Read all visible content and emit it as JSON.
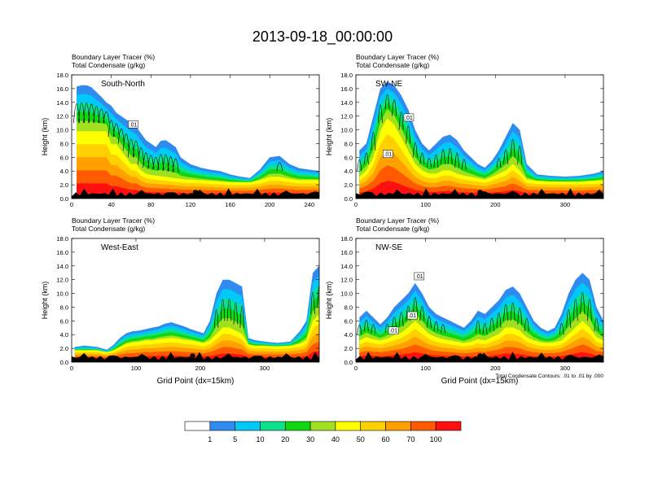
{
  "title": "2013-09-18_00:00:00",
  "chart_data": [
    {
      "type": "heatmap",
      "name": "South-North",
      "panel_label": "South-North",
      "subtitle_1": "Boundary Layer Tracer   (%)",
      "subtitle_2": "Total Condensate   (g/kg)",
      "ylabel": "Height (km)",
      "xlabel": "",
      "xlim": [
        0,
        250
      ],
      "ylim": [
        0,
        18
      ],
      "xticks": [
        "0",
        "40",
        "80",
        "120",
        "160",
        "200",
        "240"
      ],
      "yticks": [
        "0.0",
        "2.0",
        "4.0",
        "6.0",
        "8.0",
        "10.0",
        "12.0",
        "14.0",
        "16.0",
        "18.0"
      ],
      "marker_x": 125,
      "contour_labels": [
        {
          "text": ".01",
          "x": 58,
          "y": 10.5
        }
      ],
      "tracer_columns": [
        [
          5,
          16.3,
          10
        ],
        [
          10,
          16.5,
          10
        ],
        [
          15,
          16.5,
          10
        ],
        [
          20,
          16.2,
          10
        ],
        [
          25,
          15.5,
          10
        ],
        [
          30,
          14.8,
          10
        ],
        [
          35,
          14,
          10
        ],
        [
          40,
          13.5,
          8
        ],
        [
          45,
          12.5,
          8
        ],
        [
          50,
          12,
          7
        ],
        [
          55,
          11.5,
          6
        ],
        [
          60,
          11,
          5
        ],
        [
          65,
          10.5,
          5
        ],
        [
          70,
          9.5,
          4
        ],
        [
          75,
          8.5,
          3.5
        ],
        [
          80,
          8,
          3.3
        ],
        [
          85,
          7.5,
          3.2
        ],
        [
          90,
          8.4,
          3.1
        ],
        [
          95,
          8.5,
          3.0
        ],
        [
          100,
          8.0,
          2.9
        ],
        [
          105,
          7.5,
          2.8
        ],
        [
          110,
          6,
          2.7
        ],
        [
          115,
          5.5,
          2.6
        ],
        [
          120,
          5,
          2.6
        ],
        [
          130,
          4.5,
          2.5
        ],
        [
          140,
          4.2,
          2.4
        ],
        [
          150,
          4,
          2.3
        ],
        [
          160,
          3.5,
          2.2
        ],
        [
          170,
          3.2,
          2.2
        ],
        [
          180,
          3.0,
          2.2
        ],
        [
          190,
          4.2,
          2.5
        ],
        [
          200,
          6,
          3
        ],
        [
          210,
          6.2,
          3
        ],
        [
          220,
          5,
          2.7
        ],
        [
          230,
          4.4,
          2.5
        ],
        [
          240,
          4.2,
          2.5
        ],
        [
          250,
          4.0,
          2.5
        ]
      ]
    },
    {
      "type": "heatmap",
      "name": "SW-NE",
      "panel_label": "SW-NE",
      "subtitle_1": "Boundary Layer Tracer   (%)",
      "subtitle_2": "Total Condensate   (g/kg)",
      "ylabel": "Height (km)",
      "xlabel": "",
      "xlim": [
        0,
        355
      ],
      "ylim": [
        0,
        18
      ],
      "xticks": [
        "0",
        "100",
        "200",
        "300"
      ],
      "yticks": [
        "0.0",
        "2.0",
        "4.0",
        "6.0",
        "8.0",
        "10.0",
        "12.0",
        "14.0",
        "16.0",
        "18.0"
      ],
      "marker_x": 178,
      "contour_labels": [
        {
          "text": ".01",
          "x": 70,
          "y": 11.5
        },
        {
          "text": ".01",
          "x": 40,
          "y": 6.2
        }
      ],
      "tracer_columns": [
        [
          5,
          7,
          3
        ],
        [
          15,
          8,
          4
        ],
        [
          25,
          12,
          6
        ],
        [
          35,
          16,
          10
        ],
        [
          45,
          17,
          12
        ],
        [
          55,
          16.5,
          11
        ],
        [
          65,
          15,
          9
        ],
        [
          75,
          13,
          7
        ],
        [
          85,
          10,
          5
        ],
        [
          95,
          8,
          4
        ],
        [
          105,
          7,
          3.5
        ],
        [
          115,
          8,
          3.5
        ],
        [
          125,
          9,
          4
        ],
        [
          135,
          9.3,
          4
        ],
        [
          145,
          8.5,
          3.5
        ],
        [
          155,
          7,
          3.2
        ],
        [
          165,
          6,
          3
        ],
        [
          175,
          5,
          2.8
        ],
        [
          185,
          4.5,
          2.6
        ],
        [
          195,
          5.5,
          3
        ],
        [
          205,
          7,
          3.5
        ],
        [
          215,
          9,
          4
        ],
        [
          225,
          11,
          5
        ],
        [
          235,
          10,
          4
        ],
        [
          245,
          5,
          2.6
        ],
        [
          260,
          3.5,
          2.4
        ],
        [
          280,
          3.3,
          2.3
        ],
        [
          300,
          3.2,
          2.3
        ],
        [
          320,
          3.3,
          2.3
        ],
        [
          340,
          3.6,
          2.4
        ],
        [
          355,
          4,
          2.5
        ]
      ]
    },
    {
      "type": "heatmap",
      "name": "West-East",
      "panel_label": "West-East",
      "subtitle_1": "Boundary Layer Tracer   (%)",
      "subtitle_2": "Total Condensate   (g/kg)",
      "ylabel": "Height (km)",
      "xlabel": "Grid Point (dx=15km)",
      "xlim": [
        0,
        385
      ],
      "ylim": [
        0,
        18
      ],
      "xticks": [
        "0",
        "100",
        "200",
        "300"
      ],
      "yticks": [
        "0.0",
        "2.0",
        "4.0",
        "6.0",
        "8.0",
        "10.0",
        "12.0",
        "14.0",
        "16.0",
        "18.0"
      ],
      "marker_x": 188,
      "contour_labels": [],
      "tracer_columns": [
        [
          5,
          2.2,
          1.5
        ],
        [
          20,
          2.4,
          1.5
        ],
        [
          40,
          2.2,
          1.5
        ],
        [
          55,
          1.8,
          1.2
        ],
        [
          65,
          2.5,
          1.5
        ],
        [
          75,
          3.5,
          2
        ],
        [
          85,
          4.2,
          2.5
        ],
        [
          95,
          4.5,
          2.7
        ],
        [
          105,
          4.6,
          2.8
        ],
        [
          115,
          4.8,
          3
        ],
        [
          125,
          5.0,
          3
        ],
        [
          135,
          5.2,
          3.2
        ],
        [
          145,
          5.6,
          3.3
        ],
        [
          155,
          5.8,
          3.4
        ],
        [
          165,
          5.5,
          3.3
        ],
        [
          175,
          5.2,
          3.1
        ],
        [
          185,
          4.8,
          3
        ],
        [
          195,
          4.5,
          2.8
        ],
        [
          205,
          4.2,
          2.6
        ],
        [
          215,
          6,
          3
        ],
        [
          225,
          10,
          4
        ],
        [
          235,
          12,
          5
        ],
        [
          245,
          12,
          5
        ],
        [
          255,
          11.5,
          4.5
        ],
        [
          265,
          11,
          4
        ],
        [
          275,
          3.5,
          2.4
        ],
        [
          285,
          3.2,
          2.2
        ],
        [
          300,
          3.0,
          2.2
        ],
        [
          320,
          2.8,
          2.1
        ],
        [
          340,
          3.0,
          2.2
        ],
        [
          355,
          4.5,
          2.5
        ],
        [
          365,
          6,
          3
        ],
        [
          375,
          13,
          6
        ],
        [
          385,
          14,
          7
        ]
      ]
    },
    {
      "type": "heatmap",
      "name": "NW-SE",
      "panel_label": "NW-SE",
      "subtitle_1": "Boundary Layer Tracer   (%)",
      "subtitle_2": "Total Condensate   (g/kg)",
      "ylabel": "Height (km)",
      "xlabel": "Grid Point (dx=15km)",
      "xlim": [
        0,
        355
      ],
      "ylim": [
        0,
        18
      ],
      "xticks": [
        "0",
        "100",
        "200",
        "300"
      ],
      "yticks": [
        "0.0",
        "2.0",
        "4.0",
        "6.0",
        "8.0",
        "10.0",
        "12.0",
        "14.0",
        "16.0",
        "18.0"
      ],
      "marker_x": 178,
      "contour_note": "Total Condensate Contours: .01 to .01 by .000",
      "contour_labels": [
        {
          "text": ".01",
          "x": 85,
          "y": 12.2
        },
        {
          "text": ".01",
          "x": 48,
          "y": 4.3
        },
        {
          "text": ".01",
          "x": 75,
          "y": 6.5
        }
      ],
      "tracer_columns": [
        [
          5,
          6.5,
          3
        ],
        [
          15,
          7.5,
          3.5
        ],
        [
          25,
          6.5,
          3.2
        ],
        [
          35,
          5.5,
          3
        ],
        [
          45,
          6.5,
          3.3
        ],
        [
          55,
          8,
          3.8
        ],
        [
          65,
          9,
          4.2
        ],
        [
          75,
          10,
          5
        ],
        [
          85,
          11.5,
          6
        ],
        [
          95,
          10,
          5
        ],
        [
          105,
          8,
          4
        ],
        [
          115,
          7,
          3.5
        ],
        [
          125,
          6.5,
          3.2
        ],
        [
          135,
          6,
          3
        ],
        [
          145,
          5.5,
          2.8
        ],
        [
          155,
          5,
          2.6
        ],
        [
          165,
          6,
          2.8
        ],
        [
          175,
          7.5,
          3.2
        ],
        [
          185,
          7,
          3
        ],
        [
          195,
          8,
          3.5
        ],
        [
          205,
          9,
          4
        ],
        [
          215,
          10.5,
          5
        ],
        [
          225,
          11,
          5
        ],
        [
          235,
          10,
          4.5
        ],
        [
          245,
          8,
          3.5
        ],
        [
          255,
          6,
          3
        ],
        [
          265,
          5,
          2.7
        ],
        [
          275,
          4.5,
          2.6
        ],
        [
          285,
          5,
          2.7
        ],
        [
          295,
          7,
          3
        ],
        [
          305,
          10,
          4
        ],
        [
          315,
          12,
          5
        ],
        [
          325,
          13,
          6
        ],
        [
          335,
          12,
          5
        ],
        [
          345,
          8,
          3.5
        ],
        [
          355,
          6,
          3
        ]
      ]
    }
  ],
  "colorbar": {
    "labels": [
      "1",
      "5",
      "10",
      "20",
      "30",
      "40",
      "50",
      "60",
      "70",
      "100"
    ],
    "colors": [
      "#ffffff",
      "#2e8cf0",
      "#00c8f8",
      "#0ee08c",
      "#10d810",
      "#a0e020",
      "#ffff00",
      "#ffd000",
      "#ffa000",
      "#ff5a00",
      "#ff1010"
    ]
  },
  "palette": {
    "level_colors": [
      "#2e8cf0",
      "#00c8f8",
      "#0ee08c",
      "#10d810",
      "#a0e020",
      "#ffff00",
      "#ffd000",
      "#ffa000",
      "#ff5a00",
      "#ff1010"
    ],
    "terrain": "#000000"
  }
}
